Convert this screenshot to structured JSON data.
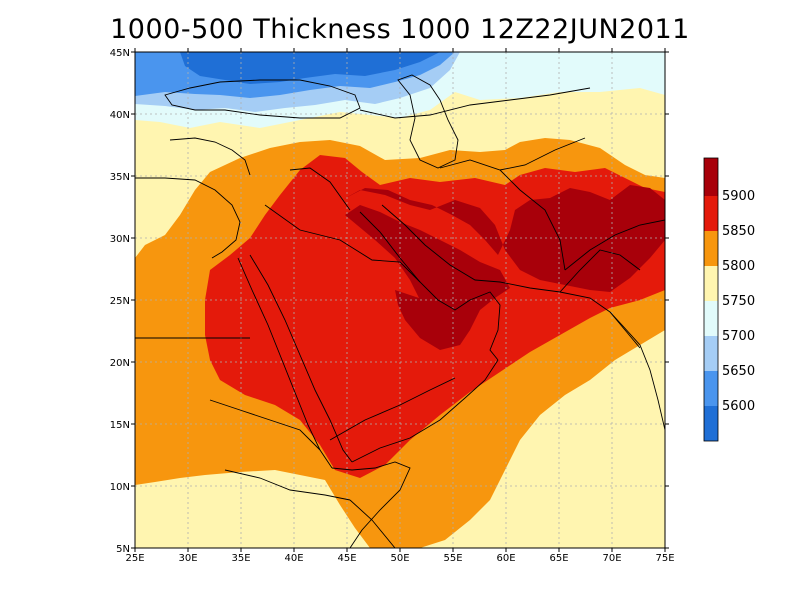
{
  "title": "1000-500 Thickness 1000 12Z22JUN2011",
  "map": {
    "lon_range": [
      25,
      75
    ],
    "lat_range": [
      5,
      45
    ],
    "lon_labels": [
      "25E",
      "30E",
      "35E",
      "40E",
      "45E",
      "50E",
      "55E",
      "60E",
      "65E",
      "70E",
      "75E"
    ],
    "lat_labels": [
      "5N",
      "10N",
      "15N",
      "20N",
      "25N",
      "30N",
      "35N",
      "40N",
      "45N"
    ],
    "grid": true
  },
  "colorbar": {
    "labels": [
      "5600",
      "5650",
      "5700",
      "5750",
      "5800",
      "5850",
      "5900"
    ],
    "colors": [
      "#1f6fd6",
      "#4a95ee",
      "#a5cdf5",
      "#e2fbfb",
      "#fff5b0",
      "#f7960e",
      "#e41a0b",
      "#a8000a"
    ]
  },
  "colors": {
    "c5600": "#1f6fd6",
    "c5650": "#4a95ee",
    "c5700": "#a5cdf5",
    "c5750": "#e2fbfb",
    "c5800": "#fff5b0",
    "c5850": "#f7960e",
    "c5900": "#e41a0b",
    "c5950": "#a8000a",
    "coast": "#000000",
    "gridline": "#b0b0b0"
  }
}
